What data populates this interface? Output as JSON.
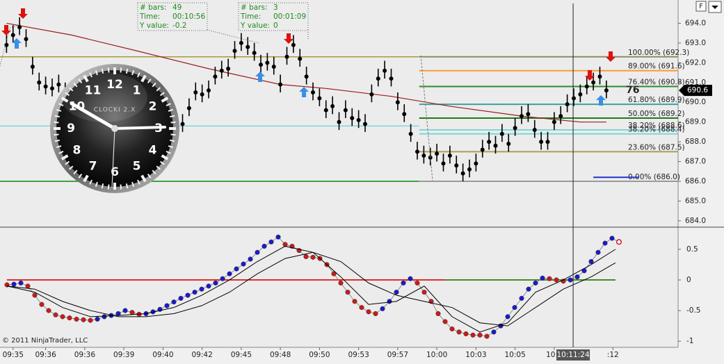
{
  "chart_data": [
    {
      "type": "ohlc",
      "xlim": [
        -1,
        103
      ],
      "ylim": [
        683.75,
        695
      ],
      "yticks": [
        {
          "value": 684,
          "label": "684.0"
        },
        {
          "value": 685,
          "label": "685.0"
        },
        {
          "value": 686,
          "label": "686.0"
        },
        {
          "value": 687,
          "label": "687.0"
        },
        {
          "value": 688,
          "label": "688.0"
        },
        {
          "value": 689,
          "label": "689.0"
        },
        {
          "value": 690,
          "label": "690.0"
        },
        {
          "value": 691,
          "label": "691.0"
        },
        {
          "value": 692,
          "label": "692.0"
        },
        {
          "value": 693,
          "label": "693.0"
        },
        {
          "value": 694,
          "label": "694.0"
        }
      ],
      "xticks": [
        {
          "value": 1,
          "label": "09:35"
        },
        {
          "value": 6,
          "label": "09:36"
        },
        {
          "value": 12,
          "label": "09:36"
        },
        {
          "value": 18,
          "label": "09:39"
        },
        {
          "value": 24,
          "label": "09:40"
        },
        {
          "value": 30,
          "label": "09:42"
        },
        {
          "value": 36,
          "label": "09:45"
        },
        {
          "value": 42,
          "label": "09:48"
        },
        {
          "value": 48,
          "label": "09:50"
        },
        {
          "value": 54,
          "label": "09:53"
        },
        {
          "value": 60,
          "label": "09:57"
        },
        {
          "value": 66,
          "label": "10:00"
        },
        {
          "value": 72,
          "label": "10:03"
        },
        {
          "value": 78,
          "label": "10:05"
        },
        {
          "value": 84,
          "label": "10:0"
        },
        {
          "value": 93,
          "label": ":12"
        }
      ],
      "bar_color": "#000000",
      "high": [
        693.4,
        693.9,
        694.3,
        693.7,
        692.3,
        691.5,
        691.3,
        691.2,
        691.4,
        691.0,
        691.1,
        690.8,
        690.5,
        690.3,
        690.0,
        690.2,
        689.9,
        689.7,
        690.0,
        690.1,
        689.8,
        690.3,
        690.5,
        690.3,
        689.8,
        690.0,
        689.5,
        689.4,
        690.2,
        691.0,
        690.9,
        691.1,
        691.8,
        692.1,
        692.2,
        693.1,
        693.5,
        693.3,
        693.0,
        692.4,
        692.5,
        692.3,
        691.4,
        692.8,
        693.4,
        692.7,
        691.8,
        691.0,
        690.7,
        690.1,
        690.3,
        689.5,
        690.1,
        689.7,
        689.6,
        689.4,
        690.9,
        691.7,
        692.1,
        691.7,
        690.5,
        689.9,
        688.9,
        688.0,
        687.8,
        687.7,
        687.9,
        687.4,
        687.8,
        687.3,
        686.9,
        687.1,
        687.4,
        688.1,
        688.5,
        688.3,
        688.9,
        688.4,
        689.2,
        689.8,
        689.9,
        689.1,
        688.5,
        688.5,
        689.5,
        689.8,
        690.4,
        690.7,
        690.9,
        691.3,
        691.5,
        691.8,
        691.1
      ],
      "low": [
        692.5,
        693.0,
        693.4,
        692.8,
        691.4,
        690.6,
        690.4,
        690.3,
        690.5,
        690.1,
        690.2,
        689.9,
        689.6,
        689.4,
        689.1,
        689.3,
        689.0,
        688.8,
        689.1,
        689.2,
        688.9,
        689.4,
        689.6,
        689.4,
        688.9,
        689.1,
        688.6,
        688.5,
        689.3,
        690.1,
        690.0,
        690.2,
        690.9,
        691.2,
        691.3,
        692.2,
        692.6,
        692.4,
        692.1,
        691.5,
        691.6,
        691.4,
        690.5,
        691.9,
        692.5,
        691.8,
        690.9,
        690.1,
        689.8,
        689.2,
        689.4,
        688.6,
        689.2,
        688.8,
        688.7,
        688.5,
        690.0,
        690.8,
        691.2,
        690.8,
        689.6,
        689.0,
        688.0,
        687.1,
        686.9,
        686.8,
        687.0,
        686.5,
        686.9,
        686.4,
        686.0,
        686.2,
        686.5,
        687.2,
        687.6,
        687.4,
        688.0,
        687.5,
        688.3,
        688.9,
        689.0,
        688.2,
        687.6,
        687.6,
        688.6,
        688.9,
        689.5,
        689.8,
        690.0,
        690.4,
        690.6,
        690.9,
        690.2
      ],
      "close": [
        692.9,
        693.4,
        693.8,
        693.2,
        691.8,
        691.0,
        690.8,
        690.7,
        690.9,
        690.5,
        690.6,
        690.3,
        690.0,
        689.8,
        689.5,
        689.7,
        689.4,
        689.2,
        689.5,
        689.6,
        689.3,
        689.8,
        690.0,
        689.8,
        689.3,
        689.5,
        689.0,
        688.9,
        689.7,
        690.5,
        690.4,
        690.6,
        691.3,
        691.6,
        691.7,
        692.6,
        693.0,
        692.8,
        692.5,
        691.9,
        692.0,
        691.8,
        690.9,
        692.3,
        692.9,
        692.2,
        691.3,
        690.5,
        690.2,
        689.6,
        689.8,
        689.0,
        689.6,
        689.2,
        689.1,
        688.9,
        690.4,
        691.2,
        691.6,
        691.2,
        690.0,
        689.4,
        688.4,
        687.5,
        687.3,
        687.2,
        687.4,
        686.9,
        687.3,
        686.8,
        686.4,
        686.6,
        686.9,
        687.6,
        688.0,
        687.8,
        688.4,
        687.9,
        688.7,
        689.3,
        689.4,
        688.6,
        688.0,
        688.0,
        689.0,
        689.3,
        689.9,
        690.2,
        690.4,
        690.8,
        691.0,
        691.3,
        690.6
      ],
      "ma": {
        "color": "#9b1c1c",
        "x": [
          0,
          10,
          20,
          31,
          42,
          49,
          59,
          68,
          79,
          88,
          92
        ],
        "values": [
          694.0,
          693.4,
          692.6,
          691.7,
          690.9,
          690.7,
          690.3,
          689.8,
          689.3,
          689.0,
          689.0
        ]
      },
      "levels": [
        {
          "value": 692.3,
          "color": "#a89a3c",
          "from": -1,
          "to": 63.3
        },
        {
          "value": 688.8,
          "color": "#7fd6d6",
          "from": -1,
          "to": 63.3
        },
        {
          "value": 686.0,
          "color": "#0a8a0a",
          "from": -1,
          "to": 63.3
        },
        {
          "value": 692.3,
          "label": "100.00% (692.3)",
          "color": "#8c8c66",
          "from": 63.3,
          "to": 103
        },
        {
          "value": 691.6,
          "label": "89.00% (691.6)",
          "color": "#ff9933",
          "from": 63.3,
          "to": 103
        },
        {
          "value": 690.8,
          "label": "76.40% (690.8)",
          "color": "#2e8b2e",
          "from": 63.3,
          "to": 103
        },
        {
          "value": 689.9,
          "label": "61.80% (689.9)",
          "color": "#3aa0a0",
          "from": 63.3,
          "to": 103
        },
        {
          "value": 689.2,
          "label": "50.00% (689.2)",
          "color": "#1a7a1a",
          "from": 63.3,
          "to": 103
        },
        {
          "value": 688.6,
          "label": "38.20% (688.6)",
          "color": "#7fd6d6",
          "from": 63.3,
          "to": 103
        },
        {
          "value": 688.4,
          "label": "38.20% (688.4)",
          "color": "#7fd6d6",
          "from": 63.3,
          "to": 103
        },
        {
          "value": 687.5,
          "label": "23.60% (687.5)",
          "color": "#a8a050",
          "from": 63.3,
          "to": 103
        },
        {
          "value": 686.0,
          "label": "0.00% (686.0)",
          "color": "#9a9a9a",
          "from": 63.3,
          "to": 103
        },
        {
          "value": 686.2,
          "color": "#2233cc",
          "from": 90,
          "to": 97
        }
      ],
      "last_price": 690.6,
      "side_label": "76",
      "crosshair": {
        "x": 86.9,
        "label": "10:11:24"
      }
    },
    {
      "type": "line",
      "xlim": [
        -1,
        96.5
      ],
      "ylim": [
        -1.1,
        0.85
      ],
      "yticks": [
        0.5,
        0,
        -0.5,
        -1
      ],
      "series": [
        {
          "up_color": "#1a1acc",
          "down_color": "#cc1a1a",
          "markers": true,
          "values": [
            -0.08,
            -0.07,
            -0.05,
            -0.1,
            -0.25,
            -0.4,
            -0.5,
            -0.57,
            -0.6,
            -0.62,
            -0.64,
            -0.65,
            -0.66,
            -0.64,
            -0.6,
            -0.58,
            -0.55,
            -0.5,
            -0.53,
            -0.56,
            -0.55,
            -0.52,
            -0.48,
            -0.42,
            -0.36,
            -0.3,
            -0.25,
            -0.2,
            -0.15,
            -0.1,
            -0.05,
            0.02,
            0.1,
            0.18,
            0.26,
            0.34,
            0.45,
            0.55,
            0.62,
            0.7,
            0.58,
            0.55,
            0.48,
            0.38,
            0.37,
            0.35,
            0.25,
            0.1,
            -0.05,
            -0.2,
            -0.35,
            -0.45,
            -0.52,
            -0.55,
            -0.47,
            -0.35,
            -0.2,
            -0.05,
            0.02,
            -0.05,
            -0.2,
            -0.35,
            -0.55,
            -0.68,
            -0.8,
            -0.85,
            -0.88,
            -0.9,
            -0.9,
            -0.92,
            -0.85,
            -0.75,
            -0.6,
            -0.45,
            -0.3,
            -0.15,
            -0.05,
            0.03,
            0.02,
            0.0,
            -0.02,
            0.0,
            0.05,
            0.15,
            0.3,
            0.45,
            0.6,
            0.68,
            0.62
          ]
        },
        {
          "color": "#000000",
          "x": [
            0,
            4,
            8,
            12,
            16,
            20,
            24,
            28,
            32,
            36,
            40,
            44,
            48,
            52,
            56,
            60,
            64,
            68,
            72,
            76,
            80,
            84,
            87.5
          ],
          "values": [
            -0.1,
            -0.2,
            -0.45,
            -0.6,
            -0.58,
            -0.55,
            -0.45,
            -0.25,
            0.0,
            0.3,
            0.55,
            0.45,
            0.05,
            -0.4,
            -0.35,
            -0.1,
            -0.6,
            -0.85,
            -0.7,
            -0.2,
            0.0,
            0.25,
            0.5
          ]
        },
        {
          "color": "#000000",
          "x": [
            0,
            4,
            8,
            12,
            16,
            20,
            24,
            28,
            32,
            36,
            40,
            44,
            48,
            52,
            56,
            60,
            64,
            68,
            72,
            76,
            80,
            84,
            87.5
          ],
          "values": [
            -0.1,
            -0.15,
            -0.35,
            -0.5,
            -0.6,
            -0.6,
            -0.55,
            -0.42,
            -0.2,
            0.1,
            0.35,
            0.45,
            0.3,
            -0.05,
            -0.25,
            -0.35,
            -0.45,
            -0.7,
            -0.75,
            -0.45,
            -0.15,
            0.05,
            0.28
          ]
        }
      ],
      "hlines": [
        {
          "value": 0,
          "color": "#e00000",
          "from": 0,
          "to": 87.5
        },
        {
          "value": 0,
          "color": "#1a9a1a",
          "from": 63,
          "to": 87.5
        }
      ]
    }
  ],
  "annotations": [
    {
      "rows": [
        [
          "# bars:",
          "49"
        ],
        [
          "Time:",
          "00:10:56"
        ],
        [
          "Y value:",
          "-0.2"
        ]
      ]
    },
    {
      "rows": [
        [
          "# bars:",
          "3"
        ],
        [
          "Time:",
          "00:01:09"
        ],
        [
          "Y value:",
          "0"
        ]
      ]
    }
  ],
  "clock": {
    "label": "CLOCKI 2.X",
    "numerals": [
      "12",
      "1",
      "2",
      "3",
      "4",
      "5",
      "6",
      "7",
      "8",
      "9",
      "10",
      "11"
    ]
  },
  "copyright": "© 2011 NinjaTrader, LLC",
  "toolbar": {
    "button": "F"
  }
}
